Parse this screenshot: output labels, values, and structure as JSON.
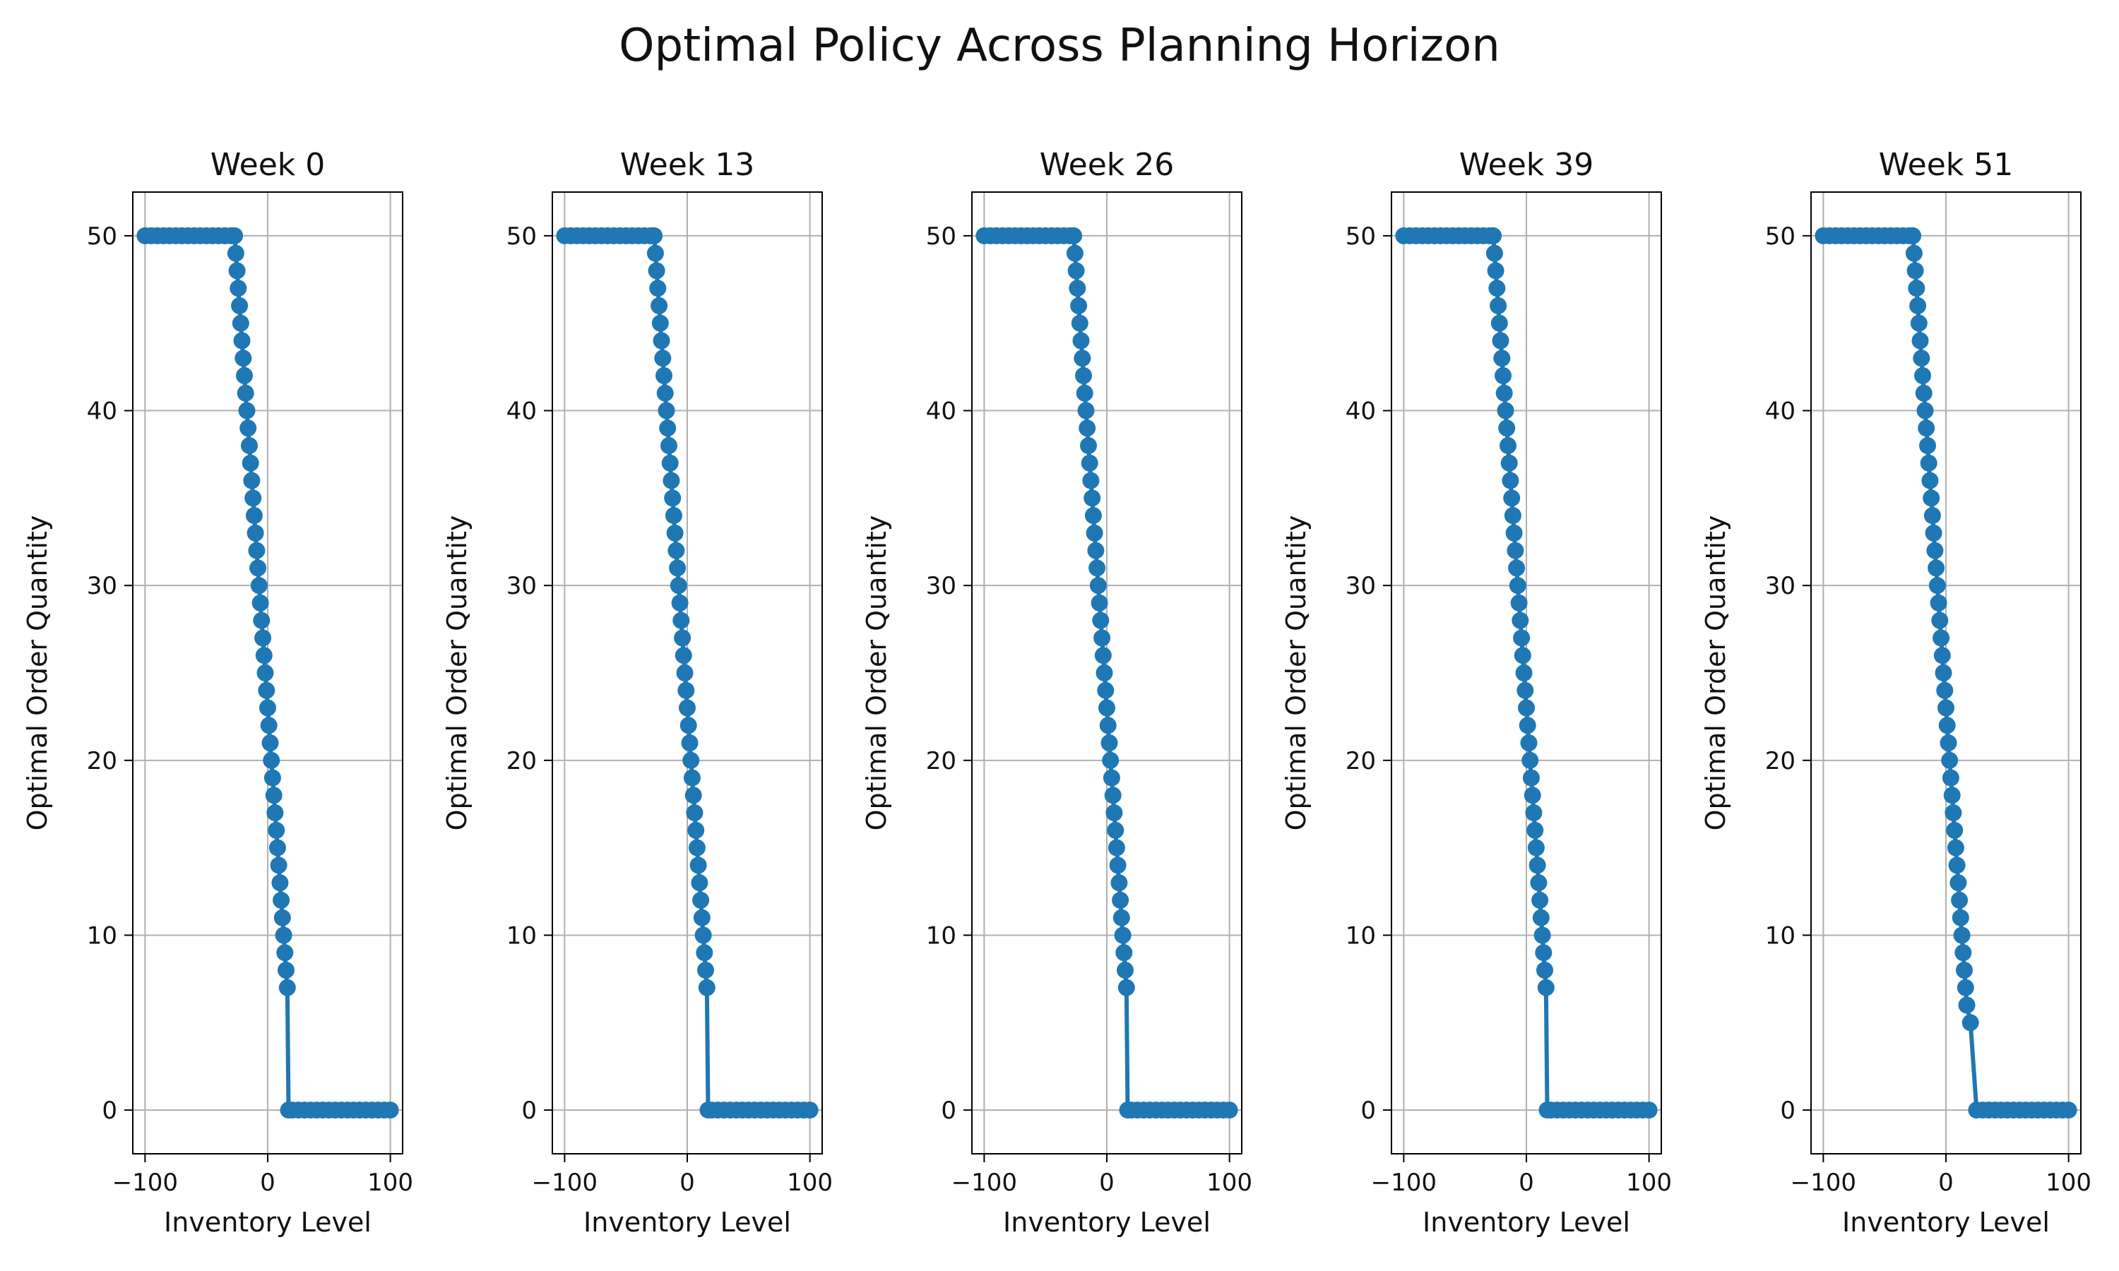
{
  "figure": {
    "title": "Optimal Policy Across Planning Horizon"
  },
  "colors": {
    "series": "#1f77b4",
    "grid": "#b0b0b0",
    "axis": "#000000"
  },
  "chart_data": [
    {
      "type": "line",
      "title": "Week 0",
      "xlabel": "Inventory Level",
      "ylabel": "Optimal Order Quantity",
      "xlim": [
        -110,
        110
      ],
      "ylim": [
        -2.5,
        52.5
      ],
      "xticks": [
        -100,
        0,
        100
      ],
      "yticks": [
        0,
        10,
        20,
        30,
        40,
        50
      ],
      "grid": true,
      "marker": "circle",
      "x": [
        -100,
        -95,
        -90,
        -85,
        -80,
        -75,
        -70,
        -65,
        -60,
        -55,
        -50,
        -45,
        -40,
        -35,
        -30,
        -27,
        -26,
        -25,
        -24,
        -23,
        -22,
        -21,
        -20,
        -19,
        -18,
        -17,
        -16,
        -15,
        -14,
        -13,
        -12,
        -11,
        -10,
        -9,
        -8,
        -7,
        -6,
        -5,
        -4,
        -3,
        -2,
        -1,
        0,
        1,
        2,
        3,
        4,
        5,
        6,
        7,
        8,
        9,
        10,
        11,
        12,
        13,
        14,
        15,
        16,
        17,
        20,
        25,
        30,
        35,
        40,
        45,
        50,
        55,
        60,
        65,
        70,
        75,
        80,
        85,
        90,
        95,
        100
      ],
      "y": [
        50,
        50,
        50,
        50,
        50,
        50,
        50,
        50,
        50,
        50,
        50,
        50,
        50,
        50,
        50,
        50,
        49,
        48,
        47,
        46,
        45,
        44,
        43,
        42,
        41,
        40,
        39,
        38,
        37,
        36,
        35,
        34,
        33,
        32,
        31,
        30,
        29,
        28,
        27,
        26,
        25,
        24,
        23,
        22,
        21,
        20,
        19,
        18,
        17,
        16,
        15,
        14,
        13,
        12,
        11,
        10,
        9,
        8,
        7,
        0,
        0,
        0,
        0,
        0,
        0,
        0,
        0,
        0,
        0,
        0,
        0,
        0,
        0,
        0,
        0,
        0,
        0
      ]
    },
    {
      "type": "line",
      "title": "Week 13",
      "xlabel": "Inventory Level",
      "ylabel": "Optimal Order Quantity",
      "xlim": [
        -110,
        110
      ],
      "ylim": [
        -2.5,
        52.5
      ],
      "xticks": [
        -100,
        0,
        100
      ],
      "yticks": [
        0,
        10,
        20,
        30,
        40,
        50
      ],
      "grid": true,
      "marker": "circle",
      "x": [
        -100,
        -95,
        -90,
        -85,
        -80,
        -75,
        -70,
        -65,
        -60,
        -55,
        -50,
        -45,
        -40,
        -35,
        -30,
        -27,
        -26,
        -25,
        -24,
        -23,
        -22,
        -21,
        -20,
        -19,
        -18,
        -17,
        -16,
        -15,
        -14,
        -13,
        -12,
        -11,
        -10,
        -9,
        -8,
        -7,
        -6,
        -5,
        -4,
        -3,
        -2,
        -1,
        0,
        1,
        2,
        3,
        4,
        5,
        6,
        7,
        8,
        9,
        10,
        11,
        12,
        13,
        14,
        15,
        16,
        17,
        20,
        25,
        30,
        35,
        40,
        45,
        50,
        55,
        60,
        65,
        70,
        75,
        80,
        85,
        90,
        95,
        100
      ],
      "y": [
        50,
        50,
        50,
        50,
        50,
        50,
        50,
        50,
        50,
        50,
        50,
        50,
        50,
        50,
        50,
        50,
        49,
        48,
        47,
        46,
        45,
        44,
        43,
        42,
        41,
        40,
        39,
        38,
        37,
        36,
        35,
        34,
        33,
        32,
        31,
        30,
        29,
        28,
        27,
        26,
        25,
        24,
        23,
        22,
        21,
        20,
        19,
        18,
        17,
        16,
        15,
        14,
        13,
        12,
        11,
        10,
        9,
        8,
        7,
        0,
        0,
        0,
        0,
        0,
        0,
        0,
        0,
        0,
        0,
        0,
        0,
        0,
        0,
        0,
        0,
        0,
        0
      ]
    },
    {
      "type": "line",
      "title": "Week 26",
      "xlabel": "Inventory Level",
      "ylabel": "Optimal Order Quantity",
      "xlim": [
        -110,
        110
      ],
      "ylim": [
        -2.5,
        52.5
      ],
      "xticks": [
        -100,
        0,
        100
      ],
      "yticks": [
        0,
        10,
        20,
        30,
        40,
        50
      ],
      "grid": true,
      "marker": "circle",
      "x": [
        -100,
        -95,
        -90,
        -85,
        -80,
        -75,
        -70,
        -65,
        -60,
        -55,
        -50,
        -45,
        -40,
        -35,
        -30,
        -27,
        -26,
        -25,
        -24,
        -23,
        -22,
        -21,
        -20,
        -19,
        -18,
        -17,
        -16,
        -15,
        -14,
        -13,
        -12,
        -11,
        -10,
        -9,
        -8,
        -7,
        -6,
        -5,
        -4,
        -3,
        -2,
        -1,
        0,
        1,
        2,
        3,
        4,
        5,
        6,
        7,
        8,
        9,
        10,
        11,
        12,
        13,
        14,
        15,
        16,
        17,
        20,
        25,
        30,
        35,
        40,
        45,
        50,
        55,
        60,
        65,
        70,
        75,
        80,
        85,
        90,
        95,
        100
      ],
      "y": [
        50,
        50,
        50,
        50,
        50,
        50,
        50,
        50,
        50,
        50,
        50,
        50,
        50,
        50,
        50,
        50,
        49,
        48,
        47,
        46,
        45,
        44,
        43,
        42,
        41,
        40,
        39,
        38,
        37,
        36,
        35,
        34,
        33,
        32,
        31,
        30,
        29,
        28,
        27,
        26,
        25,
        24,
        23,
        22,
        21,
        20,
        19,
        18,
        17,
        16,
        15,
        14,
        13,
        12,
        11,
        10,
        9,
        8,
        7,
        0,
        0,
        0,
        0,
        0,
        0,
        0,
        0,
        0,
        0,
        0,
        0,
        0,
        0,
        0,
        0,
        0,
        0
      ]
    },
    {
      "type": "line",
      "title": "Week 39",
      "xlabel": "Inventory Level",
      "ylabel": "Optimal Order Quantity",
      "xlim": [
        -110,
        110
      ],
      "ylim": [
        -2.5,
        52.5
      ],
      "xticks": [
        -100,
        0,
        100
      ],
      "yticks": [
        0,
        10,
        20,
        30,
        40,
        50
      ],
      "grid": true,
      "marker": "circle",
      "x": [
        -100,
        -95,
        -90,
        -85,
        -80,
        -75,
        -70,
        -65,
        -60,
        -55,
        -50,
        -45,
        -40,
        -35,
        -30,
        -27,
        -26,
        -25,
        -24,
        -23,
        -22,
        -21,
        -20,
        -19,
        -18,
        -17,
        -16,
        -15,
        -14,
        -13,
        -12,
        -11,
        -10,
        -9,
        -8,
        -7,
        -6,
        -5,
        -4,
        -3,
        -2,
        -1,
        0,
        1,
        2,
        3,
        4,
        5,
        6,
        7,
        8,
        9,
        10,
        11,
        12,
        13,
        14,
        15,
        16,
        17,
        20,
        25,
        30,
        35,
        40,
        45,
        50,
        55,
        60,
        65,
        70,
        75,
        80,
        85,
        90,
        95,
        100
      ],
      "y": [
        50,
        50,
        50,
        50,
        50,
        50,
        50,
        50,
        50,
        50,
        50,
        50,
        50,
        50,
        50,
        50,
        49,
        48,
        47,
        46,
        45,
        44,
        43,
        42,
        41,
        40,
        39,
        38,
        37,
        36,
        35,
        34,
        33,
        32,
        31,
        30,
        29,
        28,
        27,
        26,
        25,
        24,
        23,
        22,
        21,
        20,
        19,
        18,
        17,
        16,
        15,
        14,
        13,
        12,
        11,
        10,
        9,
        8,
        7,
        0,
        0,
        0,
        0,
        0,
        0,
        0,
        0,
        0,
        0,
        0,
        0,
        0,
        0,
        0,
        0,
        0,
        0
      ]
    },
    {
      "type": "line",
      "title": "Week 51",
      "xlabel": "Inventory Level",
      "ylabel": "Optimal Order Quantity",
      "xlim": [
        -110,
        110
      ],
      "ylim": [
        -2.5,
        52.5
      ],
      "xticks": [
        -100,
        0,
        100
      ],
      "yticks": [
        0,
        10,
        20,
        30,
        40,
        50
      ],
      "grid": true,
      "marker": "circle",
      "x": [
        -100,
        -95,
        -90,
        -85,
        -80,
        -75,
        -70,
        -65,
        -60,
        -55,
        -50,
        -45,
        -40,
        -35,
        -30,
        -27,
        -26,
        -25,
        -24,
        -23,
        -22,
        -21,
        -20,
        -19,
        -18,
        -17,
        -16,
        -15,
        -14,
        -13,
        -12,
        -11,
        -10,
        -9,
        -8,
        -7,
        -6,
        -5,
        -4,
        -3,
        -2,
        -1,
        0,
        1,
        2,
        3,
        4,
        5,
        6,
        7,
        8,
        9,
        10,
        11,
        12,
        13,
        14,
        15,
        16,
        17,
        20,
        25,
        30,
        35,
        40,
        45,
        50,
        55,
        60,
        65,
        70,
        75,
        80,
        85,
        90,
        95,
        100
      ],
      "y": [
        50,
        50,
        50,
        50,
        50,
        50,
        50,
        50,
        50,
        50,
        50,
        50,
        50,
        50,
        50,
        50,
        49,
        48,
        47,
        46,
        45,
        44,
        43,
        42,
        41,
        40,
        39,
        38,
        37,
        36,
        35,
        34,
        33,
        32,
        31,
        30,
        29,
        28,
        27,
        26,
        25,
        24,
        23,
        22,
        21,
        20,
        19,
        18,
        17,
        16,
        15,
        14,
        13,
        12,
        11,
        10,
        9,
        8,
        7,
        6,
        5,
        0,
        0,
        0,
        0,
        0,
        0,
        0,
        0,
        0,
        0,
        0,
        0,
        0,
        0,
        0,
        0
      ]
    }
  ]
}
